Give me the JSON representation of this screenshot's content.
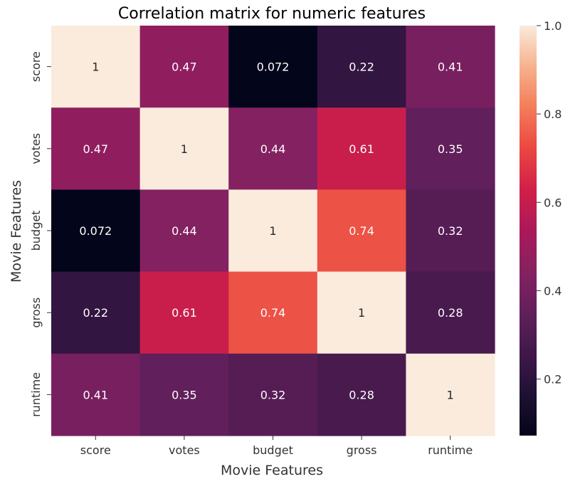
{
  "chart_data": {
    "type": "heatmap",
    "title": "Correlation matrix for numeric features",
    "xlabel": "Movie Features",
    "ylabel": "Movie Features",
    "x_categories": [
      "score",
      "votes",
      "budget",
      "gross",
      "runtime"
    ],
    "y_categories": [
      "score",
      "votes",
      "budget",
      "gross",
      "runtime"
    ],
    "values": [
      [
        1,
        0.47,
        0.072,
        0.22,
        0.41
      ],
      [
        0.47,
        1,
        0.44,
        0.61,
        0.35
      ],
      [
        0.072,
        0.44,
        1,
        0.74,
        0.32
      ],
      [
        0.22,
        0.61,
        0.74,
        1,
        0.28
      ],
      [
        0.41,
        0.35,
        0.32,
        0.28,
        1
      ]
    ],
    "annotations": [
      [
        "1",
        "0.47",
        "0.072",
        "0.22",
        "0.41"
      ],
      [
        "0.47",
        "1",
        "0.44",
        "0.61",
        "0.35"
      ],
      [
        "0.072",
        "0.44",
        "1",
        "0.74",
        "0.32"
      ],
      [
        "0.22",
        "0.61",
        "0.74",
        "1",
        "0.28"
      ],
      [
        "0.41",
        "0.35",
        "0.32",
        "0.28",
        "1"
      ]
    ],
    "colorbar": {
      "colormap": "rocket",
      "vmin": 0.072,
      "vmax": 1.0,
      "ticks": [
        0.2,
        0.4,
        0.6,
        0.8,
        1.0
      ],
      "tick_labels": [
        "0.2",
        "0.4",
        "0.6",
        "0.8",
        "1.0"
      ]
    },
    "grid": false,
    "legend": "colorbar-right"
  }
}
